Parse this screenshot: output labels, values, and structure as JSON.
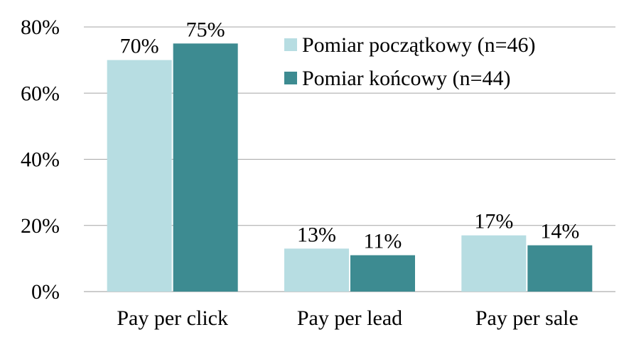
{
  "chart_data": {
    "type": "bar",
    "categories": [
      "Pay per click",
      "Pay per lead",
      "Pay per sale"
    ],
    "series": [
      {
        "name": "Pomiar początkowy (n=46)",
        "color": "#b7dde2",
        "values": [
          70,
          13,
          17
        ],
        "value_labels": [
          "70%",
          "13%",
          "17%"
        ]
      },
      {
        "name": "Pomiar końcowy (n=44)",
        "color": "#3d8b91",
        "values": [
          75,
          11,
          14
        ],
        "value_labels": [
          "75%",
          "11%",
          "14%"
        ]
      }
    ],
    "ylim": [
      0,
      80
    ],
    "yticks": [
      {
        "value": 0,
        "label": "0%"
      },
      {
        "value": 20,
        "label": "20%"
      },
      {
        "value": 40,
        "label": "40%"
      },
      {
        "value": 60,
        "label": "60%"
      },
      {
        "value": 80,
        "label": "80%"
      }
    ],
    "grid": true,
    "legend": "top-right"
  }
}
